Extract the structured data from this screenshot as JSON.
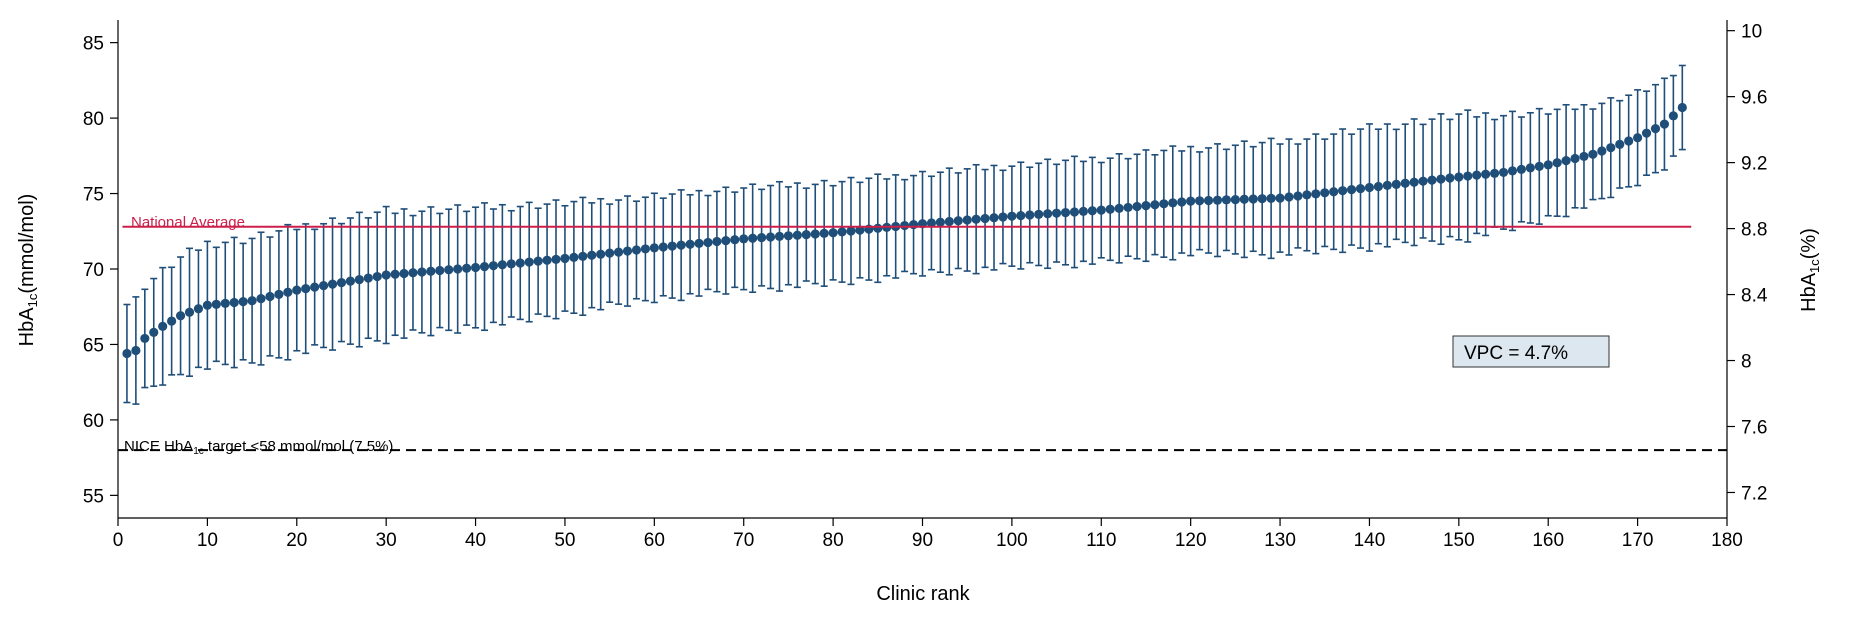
{
  "chart_data": {
    "type": "scatter",
    "xlabel": "Clinic rank",
    "ylabel_left": {
      "main": "HbA",
      "sub": "1c",
      "rest": "(mmol/mol)"
    },
    "ylabel_right": {
      "main": "HbA",
      "sub": "1c",
      "rest": "(%)"
    },
    "xlim": [
      0,
      180
    ],
    "ylim_left": [
      53.5,
      86.5
    ],
    "ylim_right_percent": [
      7.2,
      10
    ],
    "x_ticks": [
      0,
      10,
      20,
      30,
      40,
      50,
      60,
      70,
      80,
      90,
      100,
      110,
      120,
      130,
      140,
      150,
      160,
      170,
      180
    ],
    "y_left_ticks": [
      55,
      60,
      65,
      70,
      75,
      80,
      85
    ],
    "y_right_ticks": [
      "7.2",
      "7.6",
      "8",
      "8.4",
      "8.8",
      "9.2",
      "9.6",
      "10"
    ],
    "grid": false,
    "n_clinics": 175,
    "estimate_anchors": [
      [
        1,
        64.4
      ],
      [
        2,
        64.6
      ],
      [
        3,
        65.4
      ],
      [
        5,
        66.2
      ],
      [
        7,
        66.9
      ],
      [
        10,
        67.6
      ],
      [
        15,
        67.9
      ],
      [
        20,
        68.6
      ],
      [
        25,
        69.1
      ],
      [
        30,
        69.6
      ],
      [
        40,
        70.1
      ],
      [
        50,
        70.7
      ],
      [
        60,
        71.4
      ],
      [
        70,
        72.0
      ],
      [
        80,
        72.4
      ],
      [
        90,
        73.0
      ],
      [
        100,
        73.5
      ],
      [
        110,
        73.9
      ],
      [
        120,
        74.5
      ],
      [
        130,
        74.7
      ],
      [
        140,
        75.4
      ],
      [
        150,
        76.1
      ],
      [
        155,
        76.4
      ],
      [
        160,
        76.9
      ],
      [
        165,
        77.6
      ],
      [
        170,
        78.7
      ],
      [
        173,
        79.6
      ],
      [
        175,
        80.7
      ]
    ],
    "ci_halfwidth_anchors": [
      [
        1,
        3.3
      ],
      [
        10,
        4.1
      ],
      [
        30,
        4.2
      ],
      [
        60,
        3.4
      ],
      [
        90,
        3.3
      ],
      [
        120,
        3.5
      ],
      [
        150,
        4.1
      ],
      [
        175,
        2.7
      ]
    ],
    "reference_lines": [
      {
        "name": "National Average",
        "value": 72.8,
        "color": "#cc1f4a",
        "style": "solid"
      },
      {
        "name": "NICE target",
        "value": 58.0,
        "color": "#000000",
        "style": "dashed"
      }
    ],
    "annotations": {
      "national_average": "National Average",
      "nice_target": {
        "prefix": "NICE HbA",
        "sub": "1c",
        "suffix": " target <58 mmol/mol (7.5%)"
      },
      "vpc": "VPC = 4.7%"
    },
    "colors": {
      "marker": "#1f4e79",
      "errorbar": "#1f4e79",
      "vpc_box_fill": "#dce7ef"
    }
  }
}
